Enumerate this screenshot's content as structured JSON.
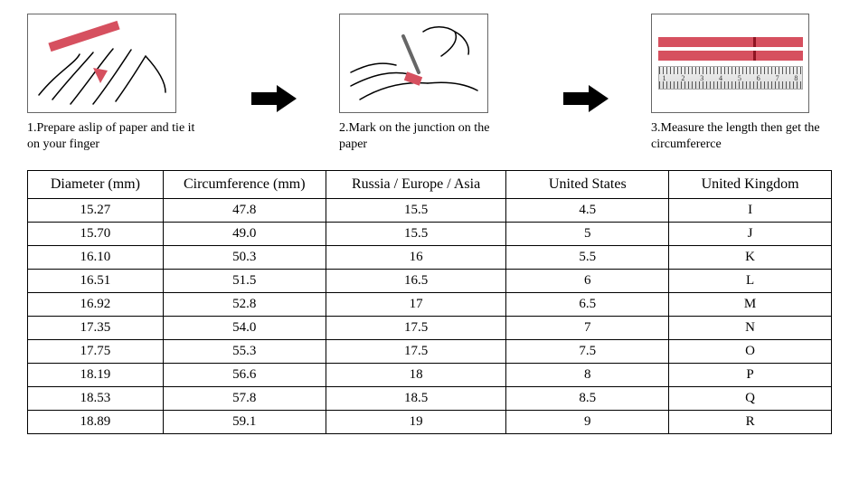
{
  "accent_color": "#d6505f",
  "steps": [
    {
      "caption": "1.Prepare aslip of paper and tie it on your finger"
    },
    {
      "caption": "2.Mark on the junction on the paper"
    },
    {
      "caption": "3.Measure the length then get the circumfererce"
    }
  ],
  "ruler_numbers": [
    "1",
    "2",
    "3",
    "4",
    "5",
    "6",
    "7",
    "8"
  ],
  "table": {
    "columns": [
      "Diameter (mm)",
      "Circumference (mm)",
      "Russia / Europe / Asia",
      "United States",
      "United Kingdom"
    ],
    "rows": [
      [
        "15.27",
        "47.8",
        "15.5",
        "4.5",
        "I"
      ],
      [
        "15.70",
        "49.0",
        "15.5",
        "5",
        "J"
      ],
      [
        "16.10",
        "50.3",
        "16",
        "5.5",
        "K"
      ],
      [
        "16.51",
        "51.5",
        "16.5",
        "6",
        "L"
      ],
      [
        "16.92",
        "52.8",
        "17",
        "6.5",
        "M"
      ],
      [
        "17.35",
        "54.0",
        "17.5",
        "7",
        "N"
      ],
      [
        "17.75",
        "55.3",
        "17.5",
        "7.5",
        "O"
      ],
      [
        "18.19",
        "56.6",
        "18",
        "8",
        "P"
      ],
      [
        "18.53",
        "57.8",
        "18.5",
        "8.5",
        "Q"
      ],
      [
        "18.89",
        "59.1",
        "19",
        "9",
        "R"
      ]
    ]
  }
}
